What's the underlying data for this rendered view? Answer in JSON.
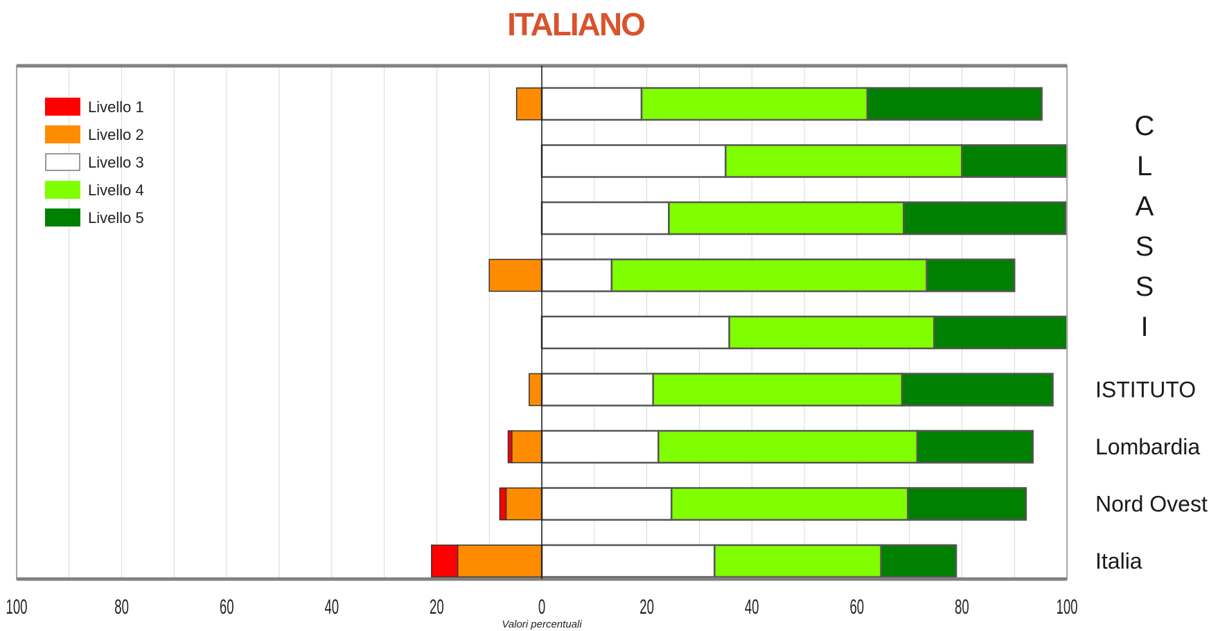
{
  "chart_data": {
    "type": "bar",
    "orientation": "horizontal-diverging",
    "title": "ITALIANO",
    "xlabel": "Valori percentuali",
    "xlim": [
      -100,
      100
    ],
    "x_ticks": [
      "100",
      "80",
      "60",
      "40",
      "20",
      "0",
      "20",
      "40",
      "60",
      "80",
      "100"
    ],
    "group_label": "CLASSI",
    "categories": [
      "",
      "",
      "",
      "",
      "",
      "ISTITUTO",
      "Lombardia",
      "Nord Ovest",
      "Italia"
    ],
    "legend_position": "top-left",
    "series": [
      {
        "name": "Livello 1",
        "color": "#ff0000",
        "side": "negative",
        "values": [
          0,
          0,
          0,
          0,
          0,
          0,
          0.7,
          1.2,
          5.0
        ]
      },
      {
        "name": "Livello 2",
        "color": "#ff8c00",
        "side": "negative",
        "values": [
          4.8,
          0,
          0,
          10.0,
          0,
          2.4,
          5.7,
          6.8,
          16.0
        ]
      },
      {
        "name": "Livello 3",
        "color": "#ffffff",
        "side": "positive",
        "values": [
          19.0,
          35.0,
          24.2,
          13.3,
          35.7,
          21.2,
          22.2,
          24.7,
          32.9
        ]
      },
      {
        "name": "Livello 4",
        "color": "#80ff00",
        "side": "positive",
        "values": [
          43.0,
          45.0,
          44.7,
          60.0,
          39.0,
          47.4,
          49.3,
          45.0,
          31.7
        ]
      },
      {
        "name": "Livello 5",
        "color": "#008000",
        "side": "positive",
        "values": [
          33.2,
          20.0,
          30.8,
          16.7,
          25.3,
          28.7,
          22.0,
          22.5,
          14.3
        ]
      }
    ]
  }
}
